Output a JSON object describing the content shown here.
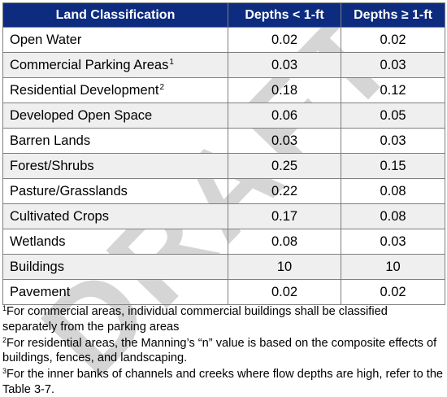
{
  "table": {
    "headers": [
      "Land Classification",
      "Depths < 1-ft",
      "Depths ≥ 1-ft"
    ],
    "rows": [
      {
        "label": "Open Water",
        "sup": "",
        "shallow": "0.02",
        "deep": "0.02"
      },
      {
        "label": "Commercial Parking Areas",
        "sup": "1",
        "shallow": "0.03",
        "deep": "0.03"
      },
      {
        "label": "Residential Development",
        "sup": "2",
        "shallow": "0.18",
        "deep": "0.12"
      },
      {
        "label": "Developed Open Space",
        "sup": "",
        "shallow": "0.06",
        "deep": "0.05"
      },
      {
        "label": "Barren Lands",
        "sup": "",
        "shallow": "0.03",
        "deep": "0.03"
      },
      {
        "label": "Forest/Shrubs",
        "sup": "",
        "shallow": "0.25",
        "deep": "0.15"
      },
      {
        "label": "Pasture/Grasslands",
        "sup": "",
        "shallow": "0.22",
        "deep": "0.08"
      },
      {
        "label": "Cultivated Crops",
        "sup": "",
        "shallow": "0.17",
        "deep": "0.08"
      },
      {
        "label": "Wetlands",
        "sup": "",
        "shallow": "0.08",
        "deep": "0.03"
      },
      {
        "label": "Buildings",
        "sup": "",
        "shallow": "10",
        "deep": "10"
      },
      {
        "label": "Pavement",
        "sup": "",
        "shallow": "0.02",
        "deep": "0.02"
      }
    ]
  },
  "footnotes": [
    {
      "mark": "1",
      "text": "For commercial areas, individual commercial buildings shall be classified separately from the parking areas"
    },
    {
      "mark": "2",
      "text": "For residential areas, the Manning’s “n” value is based on the composite effects of buildings, fences, and landscaping."
    },
    {
      "mark": "3",
      "text": "For the inner banks of channels and creeks where flow depths are high, refer to the Table 3-7."
    }
  ],
  "watermark": "DRAFT",
  "colors": {
    "header_bg": "#0d2c7f",
    "alt_row_bg": "#efefef",
    "border": "#7f7f7f",
    "watermark": "#b4b4b4"
  }
}
